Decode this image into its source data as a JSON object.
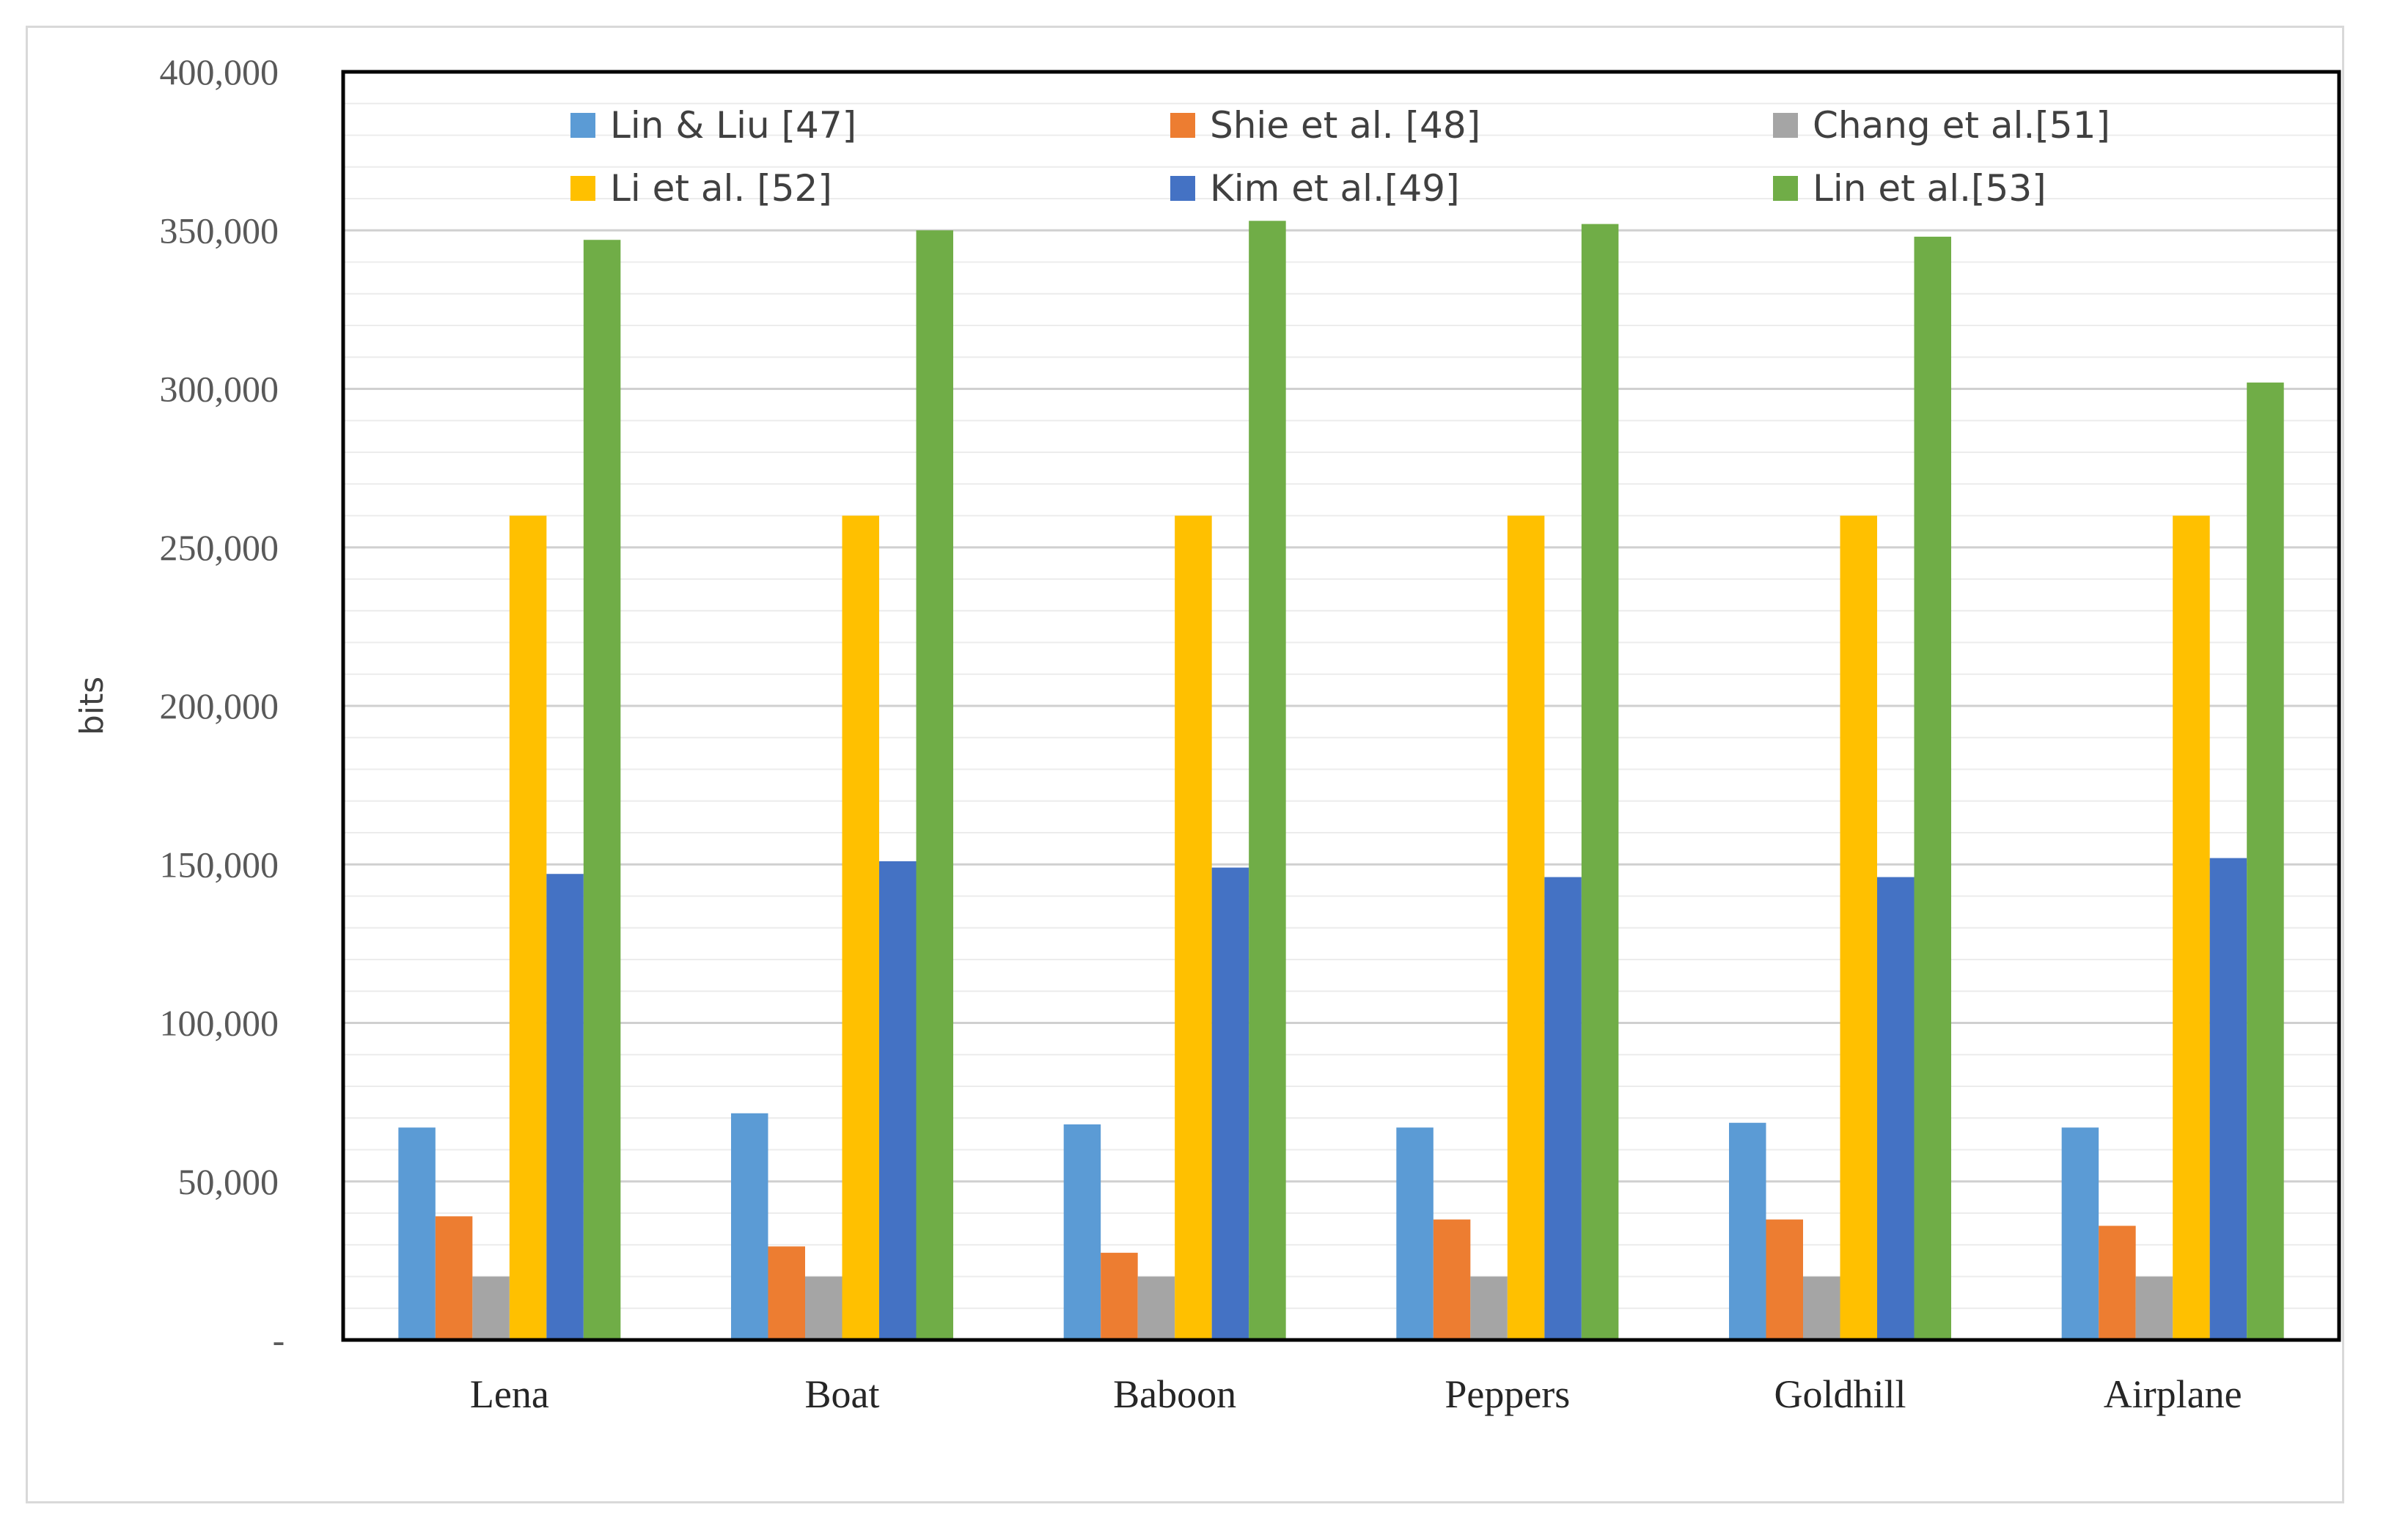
{
  "chart_data": {
    "type": "bar",
    "title": "",
    "xlabel": "",
    "ylabel": "bits",
    "ylim": [
      0,
      400000
    ],
    "yticks": [
      0,
      50000,
      100000,
      150000,
      200000,
      250000,
      300000,
      350000,
      400000
    ],
    "ytick_labels": [
      "-",
      "50,000",
      "100,000",
      "150,000",
      "200,000",
      "250,000",
      "300,000",
      "350,000",
      "400,000"
    ],
    "grid": {
      "major": true,
      "minor": true
    },
    "legend_position": "top",
    "categories": [
      "Lena",
      "Boat",
      "Baboon",
      "Peppers",
      "Goldhill",
      "Airplane"
    ],
    "series": [
      {
        "name": "Lin & Liu [47]",
        "color": "#5b9bd5",
        "values": [
          67000,
          71500,
          68000,
          67000,
          68500,
          67000
        ]
      },
      {
        "name": "Shie et al. [48]",
        "color": "#ed7d31",
        "values": [
          39000,
          29500,
          27500,
          38000,
          38000,
          36000
        ]
      },
      {
        "name": "Chang et al.[51]",
        "color": "#a5a5a5",
        "values": [
          20000,
          20000,
          20000,
          20000,
          20000,
          20000
        ]
      },
      {
        "name": "Li et al. [52]",
        "color": "#ffc000",
        "values": [
          260000,
          260000,
          260000,
          260000,
          260000,
          260000
        ]
      },
      {
        "name": "Kim et al.[49]",
        "color": "#4472c4",
        "values": [
          147000,
          151000,
          149000,
          146000,
          146000,
          152000
        ]
      },
      {
        "name": "Lin et al.[53]",
        "color": "#70ad47",
        "values": [
          347000,
          350000,
          353000,
          352000,
          348000,
          302000
        ]
      }
    ]
  }
}
